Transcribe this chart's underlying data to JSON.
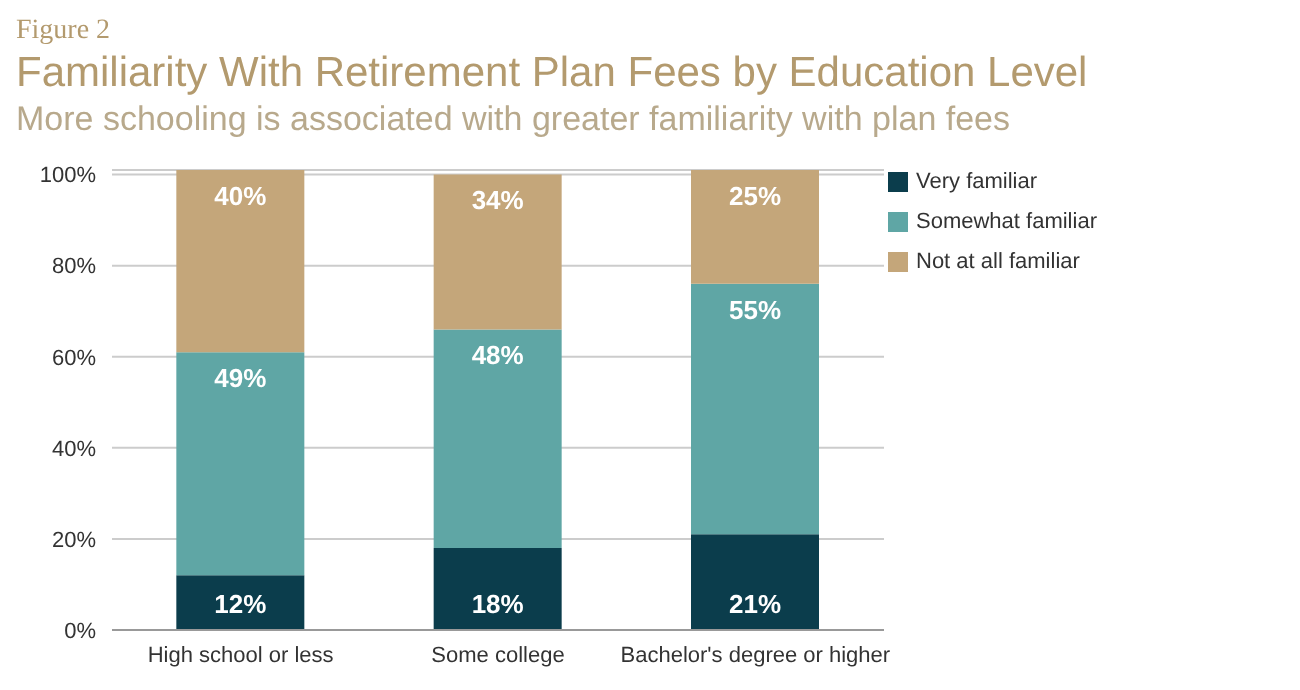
{
  "chart_data": {
    "type": "bar",
    "title": "Familiarity With Retirement Plan Fees by Education Level",
    "subtitle": "More schooling is associated with greater familiarity with plan fees",
    "annotations": [
      "Figure 2"
    ],
    "categories": [
      "High school or less",
      "Some college",
      "Bachelor's degree or higher"
    ],
    "stacked": true,
    "series": [
      {
        "name": "Very familiar",
        "color": "#0b3d4c",
        "values": [
          12,
          18,
          21
        ],
        "value_labels": [
          "12%",
          "18%",
          "21%"
        ]
      },
      {
        "name": "Somewhat familiar",
        "color": "#5fa6a5",
        "values": [
          49,
          48,
          55
        ],
        "value_labels": [
          "49%",
          "48%",
          "55%"
        ]
      },
      {
        "name": "Not at all familiar",
        "color": "#c4a67a",
        "values": [
          40,
          34,
          25
        ],
        "value_labels": [
          "40%",
          "34%",
          "25%"
        ]
      }
    ],
    "ylim": [
      0,
      101
    ],
    "yticks": [
      {
        "value": 0,
        "label": "0%"
      },
      {
        "value": 20,
        "label": "20%"
      },
      {
        "value": 40,
        "label": "40%"
      },
      {
        "value": 60,
        "label": "60%"
      },
      {
        "value": 80,
        "label": "80%"
      },
      {
        "value": 100,
        "label": "100%"
      }
    ],
    "grid": "y",
    "legend": "top right"
  }
}
